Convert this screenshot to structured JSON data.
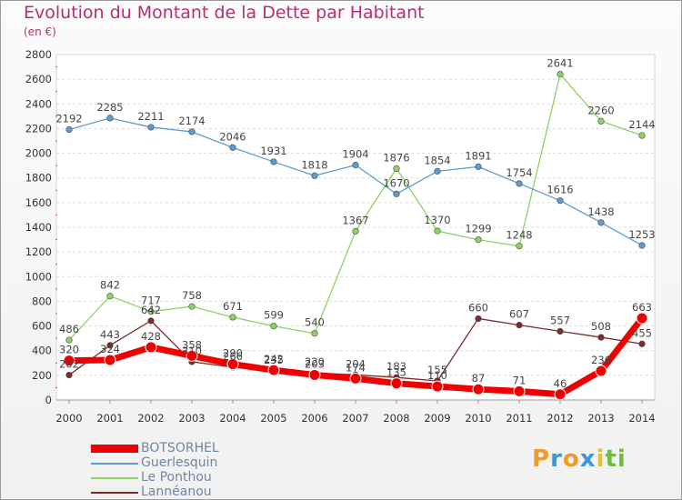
{
  "header": {
    "title": "Evolution du Montant de la Dette par Habitant",
    "unit": "(en €)"
  },
  "logo": {
    "letters": [
      "P",
      "r",
      "o",
      "x",
      "i",
      "t",
      "i"
    ],
    "colors": [
      "#f39a2b",
      "#3a98d8",
      "#f39a2b",
      "#3a98d8",
      "#e9c12b",
      "#6bbf3b",
      "#6bbf3b"
    ]
  },
  "chart_data": {
    "type": "line",
    "title": "Evolution du Montant de la Dette par Habitant",
    "ylabel": "(en €)",
    "xlabel": "",
    "ylim": [
      0,
      2800
    ],
    "yticks": [
      0,
      200,
      400,
      600,
      800,
      1000,
      1200,
      1400,
      1600,
      1800,
      2000,
      2200,
      2400,
      2600,
      2800
    ],
    "grid": true,
    "legend_position": "bottom-left",
    "x": [
      "2000",
      "2001",
      "2002",
      "2003",
      "2004",
      "2005",
      "2006",
      "2007",
      "2008",
      "2009",
      "2010",
      "2011",
      "2012",
      "2013",
      "2014"
    ],
    "series": [
      {
        "name": "BOTSORHEL",
        "color": "#ee0000",
        "values": [
          320,
          324,
          428,
          358,
          290,
          242,
          203,
          174,
          135,
          110,
          87,
          71,
          46,
          236,
          663
        ]
      },
      {
        "name": "Guerlesquin",
        "color": "#5d9cd3",
        "values": [
          2192,
          2285,
          2211,
          2174,
          2046,
          1931,
          1818,
          1904,
          1670,
          1854,
          1891,
          1754,
          1616,
          1438,
          1253
        ]
      },
      {
        "name": "Le Ponthou",
        "color": "#8fd264",
        "values": [
          486,
          842,
          717,
          758,
          671,
          599,
          540,
          1367,
          1876,
          1370,
          1299,
          1248,
          2641,
          2260,
          2144
        ]
      },
      {
        "name": "Lannéanou",
        "color": "#7d2a2a",
        "values": [
          202,
          443,
          642,
          310,
          266,
          235,
          220,
          204,
          183,
          155,
          660,
          607,
          557,
          508,
          455
        ]
      }
    ]
  }
}
